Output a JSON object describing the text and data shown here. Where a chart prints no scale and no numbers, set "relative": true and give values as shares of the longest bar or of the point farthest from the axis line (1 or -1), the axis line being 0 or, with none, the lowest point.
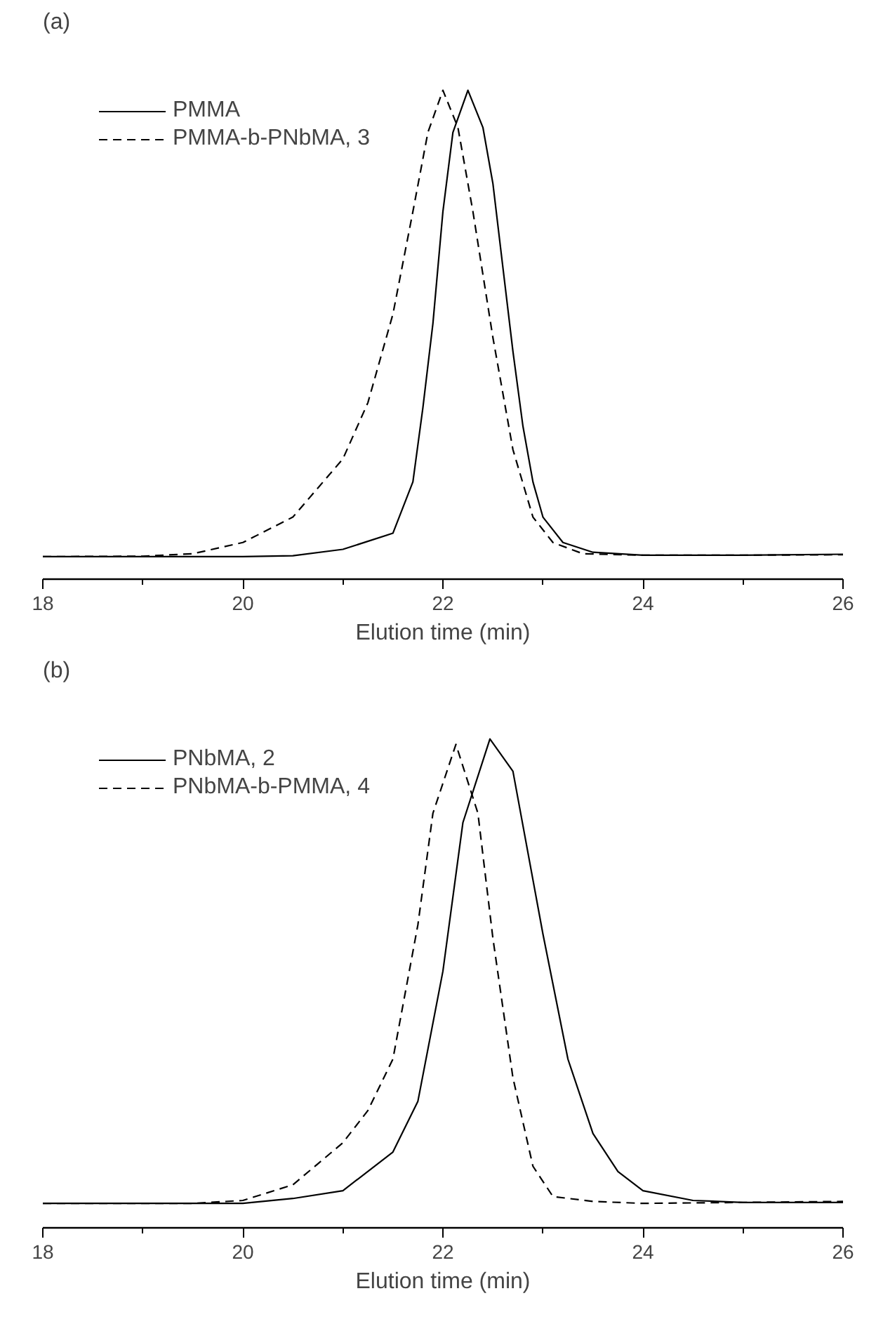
{
  "chart_data": [
    {
      "type": "line",
      "title": "(a)",
      "xlabel": "Elution time (min)",
      "relative": true,
      "xlim": [
        18,
        26
      ],
      "xticks": [
        18,
        20,
        22,
        24,
        26
      ],
      "tick_labels": "x",
      "legend": "top left",
      "grid": false,
      "series": [
        {
          "name": "PMMA",
          "color": "#000000",
          "line_style": "solid",
          "x": [
            18,
            19,
            20,
            20.5,
            21,
            21.5,
            21.7,
            21.8,
            21.9,
            22.0,
            22.1,
            22.25,
            22.4,
            22.5,
            22.6,
            22.7,
            22.8,
            22.9,
            23.0,
            23.2,
            23.5,
            24,
            25,
            26
          ],
          "values": [
            0.046,
            0.046,
            0.046,
            0.048,
            0.061,
            0.094,
            0.199,
            0.351,
            0.523,
            0.752,
            0.914,
            1,
            0.924,
            0.809,
            0.637,
            0.466,
            0.313,
            0.199,
            0.127,
            0.075,
            0.055,
            0.049,
            0.049,
            0.051
          ]
        },
        {
          "name": "PMMA-b-PNbMA, 3",
          "color": "#000000",
          "line_style": "dashed",
          "x": [
            18,
            19,
            19.5,
            20,
            20.5,
            21,
            21.25,
            21.5,
            21.7,
            21.85,
            22.0,
            22.15,
            22.3,
            22.5,
            22.7,
            22.9,
            23.1,
            23.4,
            24,
            25,
            26
          ],
          "values": [
            0.046,
            0.047,
            0.052,
            0.075,
            0.127,
            0.246,
            0.361,
            0.542,
            0.752,
            0.914,
            1,
            0.924,
            0.752,
            0.494,
            0.265,
            0.127,
            0.075,
            0.052,
            0.049,
            0.049,
            0.05
          ]
        }
      ]
    },
    {
      "type": "line",
      "title": "(b)",
      "xlabel": "Elution time (min)",
      "relative": true,
      "xlim": [
        18,
        26
      ],
      "xticks": [
        18,
        20,
        22,
        24,
        26
      ],
      "tick_labels": "x",
      "legend": "top left",
      "grid": false,
      "series": [
        {
          "name": "PNbMA, 2",
          "color": "#000000",
          "line_style": "solid",
          "x": [
            18,
            19,
            20,
            20.5,
            21,
            21.5,
            21.75,
            22,
            22.2,
            22.47,
            22.7,
            23,
            23.25,
            23.5,
            23.75,
            24,
            24.5,
            25,
            26
          ],
          "values": [
            0.05,
            0.05,
            0.05,
            0.06,
            0.076,
            0.155,
            0.259,
            0.525,
            0.829,
            1,
            0.934,
            0.601,
            0.345,
            0.193,
            0.115,
            0.076,
            0.056,
            0.052,
            0.052
          ]
        },
        {
          "name": "PNbMA-b-PMMA, 4",
          "color": "#000000",
          "line_style": "dashed",
          "x": [
            18,
            19,
            19.5,
            20,
            20.5,
            21,
            21.25,
            21.5,
            21.75,
            21.9,
            22.13,
            22.35,
            22.5,
            22.7,
            22.9,
            23.1,
            23.5,
            24,
            25,
            26
          ],
          "values": [
            0.05,
            0.05,
            0.05,
            0.056,
            0.088,
            0.174,
            0.24,
            0.345,
            0.62,
            0.848,
            0.989,
            0.848,
            0.592,
            0.307,
            0.126,
            0.064,
            0.054,
            0.05,
            0.052,
            0.054
          ]
        }
      ]
    }
  ]
}
